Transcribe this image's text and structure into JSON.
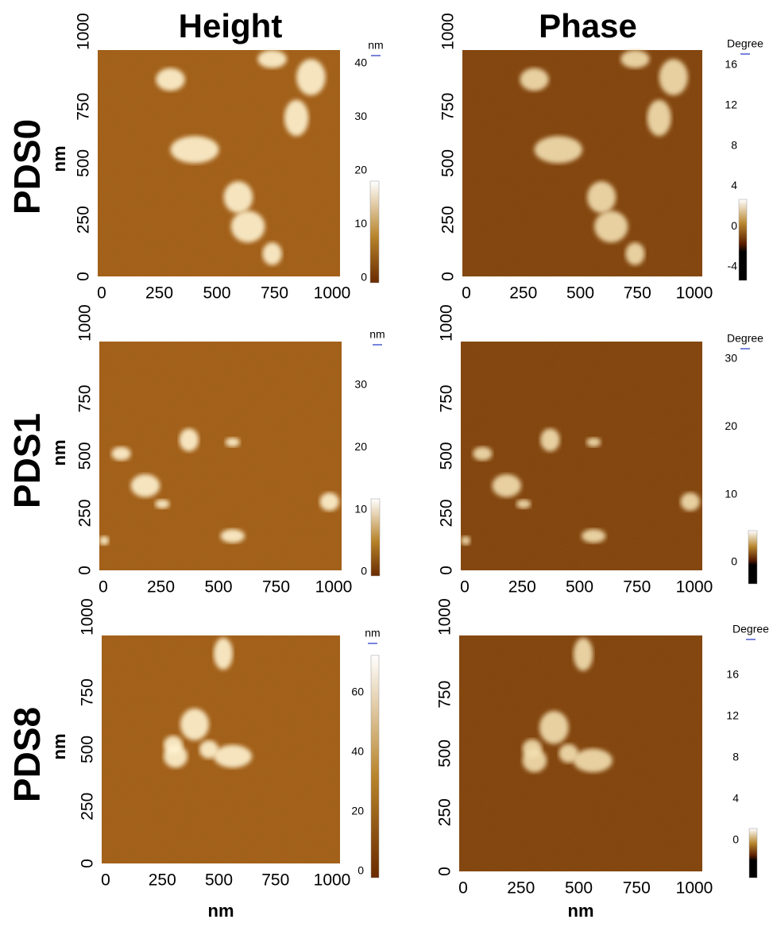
{
  "columns": [
    "Height",
    "Phase"
  ],
  "rows": [
    {
      "label": "PDS0",
      "y_label": "nm",
      "panels": [
        {
          "xticks": [
            0,
            250,
            500,
            750,
            1000
          ],
          "yticks": [
            0,
            250,
            500,
            750,
            1000
          ],
          "unit": "nm",
          "scale_ticks": [
            40,
            30,
            20,
            10,
            0
          ]
        },
        {
          "xticks": [
            0,
            250,
            500,
            750,
            1000
          ],
          "yticks": [
            0,
            250,
            500,
            750,
            1000
          ],
          "unit": "Degree",
          "scale_ticks": [
            16,
            12,
            8,
            4,
            0,
            -4
          ]
        }
      ]
    },
    {
      "label": "PDS1",
      "y_label": "nm",
      "panels": [
        {
          "xticks": [
            0,
            250,
            500,
            750,
            1000
          ],
          "yticks": [
            0,
            250,
            500,
            750,
            1000
          ],
          "unit": "nm",
          "scale_ticks": [
            30,
            20,
            10,
            0
          ]
        },
        {
          "xticks": [
            0,
            250,
            500,
            750,
            1000
          ],
          "yticks": [
            0,
            250,
            500,
            750,
            1000
          ],
          "unit": "Degree",
          "scale_ticks": [
            30,
            20,
            10,
            0
          ]
        }
      ]
    },
    {
      "label": "PDS8",
      "y_label": "nm",
      "panels": [
        {
          "xticks": [
            0,
            250,
            500,
            750,
            1000
          ],
          "yticks": [
            0,
            250,
            500,
            750,
            1000
          ],
          "unit": "nm",
          "scale_ticks": [
            60,
            40,
            20,
            0
          ],
          "x_label": "nm"
        },
        {
          "xticks": [
            0,
            250,
            500,
            750,
            1000
          ],
          "yticks": [
            0,
            250,
            500,
            750,
            1000
          ],
          "unit": "Degree",
          "scale_ticks": [
            16,
            12,
            8,
            4,
            0
          ],
          "x_label": "nm"
        }
      ]
    }
  ]
}
